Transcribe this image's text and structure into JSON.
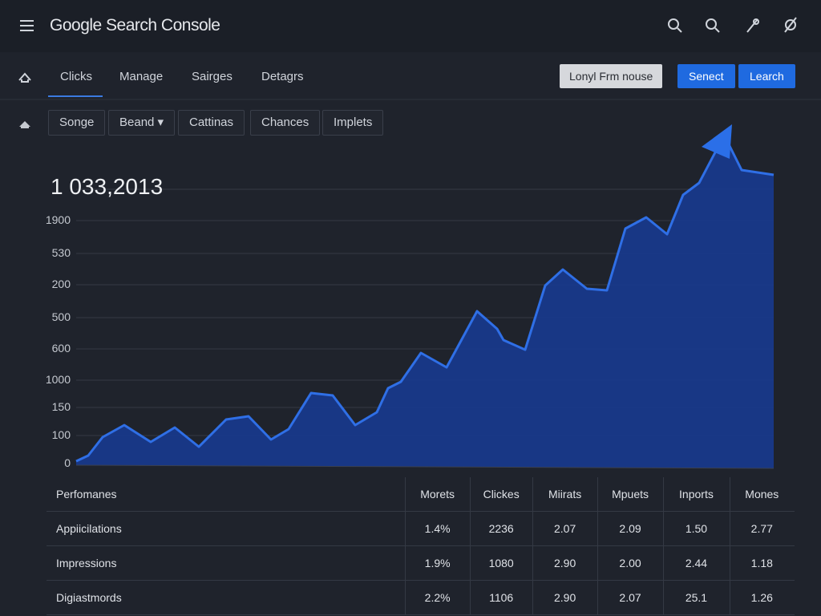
{
  "header": {
    "title": "Google Search Console"
  },
  "tabs": [
    "Clicks",
    "Manage",
    "Sairges",
    "Detagrs"
  ],
  "toolbar": {
    "input": "Lonyl Frm nouse",
    "buttons": [
      "Senect",
      "Learch"
    ]
  },
  "filters": [
    "Songe",
    "Beand",
    "Cattinas",
    "Chances",
    "Implets"
  ],
  "chart": {
    "headline": "1 033,2013",
    "axis_labels": [
      "1900",
      "530",
      "200",
      "500",
      "600",
      "1000",
      "150",
      "100",
      "0"
    ]
  },
  "table": {
    "header": [
      "Perfomanes",
      "Morets",
      "Clickes",
      "Miirats",
      "Mpuets",
      "Inports",
      "Mones"
    ],
    "rows": [
      [
        "Appiicilations",
        "1.4%",
        "2236",
        "2.07",
        "2.09",
        "1.50",
        "2.77"
      ],
      [
        "Impressions",
        "1.9%",
        "1080",
        "2.90",
        "2.00",
        "2.44",
        "1.18"
      ],
      [
        "Digiastmords",
        "2.2%",
        "1106",
        "2.90",
        "2.07",
        "25.1",
        "1.26"
      ]
    ]
  }
}
